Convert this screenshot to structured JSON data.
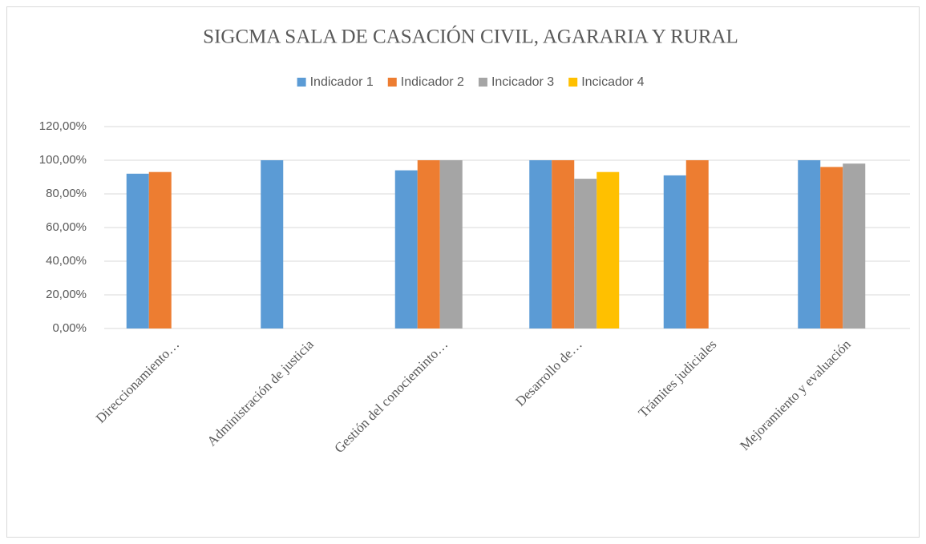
{
  "chart_data": {
    "type": "bar",
    "title": "SIGCMA SALA DE CASACIÓN CIVIL, AGARARIA Y RURAL",
    "categories": [
      "Direccionamiento…",
      "Administración de justicia",
      "Gestión del conocieminto…",
      "Desarrollo de…",
      "Trámites judiciales",
      "Mejoramiento y evaluación"
    ],
    "series": [
      {
        "name": "Indicador 1",
        "color": "#5b9bd5",
        "values": [
          92,
          100,
          94,
          100,
          91,
          100
        ]
      },
      {
        "name": "Indicador 2",
        "color": "#ed7d31",
        "values": [
          93,
          null,
          100,
          100,
          100,
          96
        ]
      },
      {
        "name": "Incicador 3",
        "color": "#a5a5a5",
        "values": [
          null,
          null,
          100,
          89,
          null,
          98
        ]
      },
      {
        "name": "Incicador 4",
        "color": "#ffc000",
        "values": [
          null,
          null,
          null,
          93,
          null,
          null
        ]
      }
    ],
    "ylim": [
      0,
      120
    ],
    "yticks": [
      {
        "value": 0,
        "label": "0,00%"
      },
      {
        "value": 20,
        "label": "20,00%"
      },
      {
        "value": 40,
        "label": "40,00%"
      },
      {
        "value": 60,
        "label": "60,00%"
      },
      {
        "value": 80,
        "label": "80,00%"
      },
      {
        "value": 100,
        "label": "100,00%"
      },
      {
        "value": 120,
        "label": "120,00%"
      }
    ],
    "grid": true,
    "legend": "top"
  }
}
